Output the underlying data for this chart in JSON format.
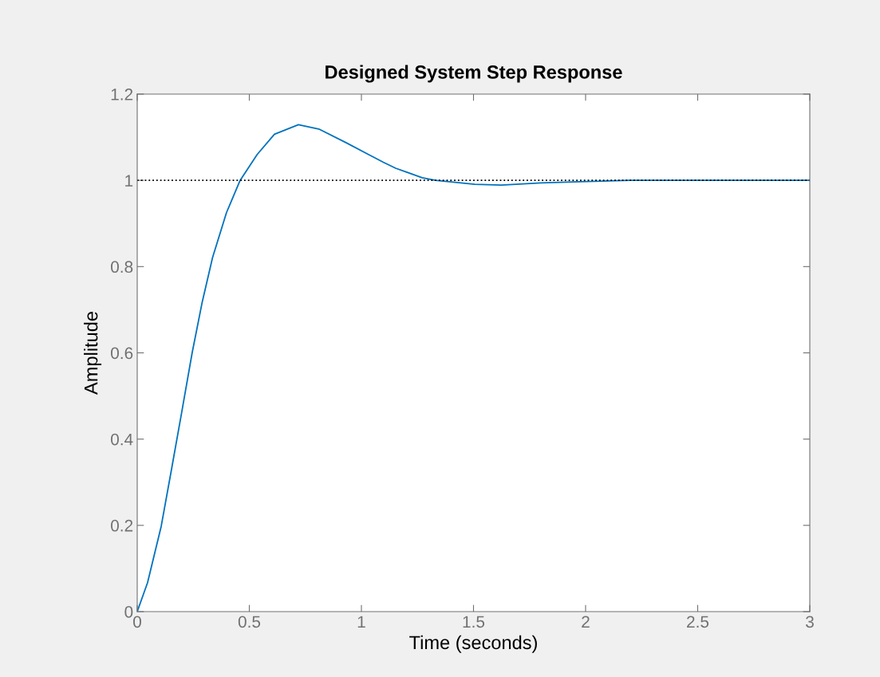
{
  "chart_data": {
    "type": "line",
    "title": "Designed System Step Response",
    "xlabel": "Time (seconds)",
    "ylabel": "Amplitude",
    "series": [
      {
        "color": "#0072bd",
        "x": [
          0,
          0.046,
          0.107,
          0.153,
          0.199,
          0.245,
          0.29,
          0.336,
          0.398,
          0.459,
          0.535,
          0.612,
          0.719,
          0.81,
          0.933,
          1.035,
          1.098,
          1.153,
          1.271,
          1.33,
          1.506,
          1.624,
          1.8,
          1.976,
          2.2,
          2.5,
          3
        ],
        "values": [
          0,
          0.067,
          0.198,
          0.33,
          0.464,
          0.6,
          0.718,
          0.821,
          0.925,
          1.0,
          1.06,
          1.107,
          1.129,
          1.119,
          1.087,
          1.059,
          1.042,
          1.028,
          1.006,
          1.0,
          0.991,
          0.989,
          0.994,
          0.997,
          1.0,
          1.0,
          1.0
        ]
      }
    ],
    "ref_lines": [
      {
        "axis": "y",
        "value": 1,
        "color": "#000000",
        "line_style": "dotted"
      }
    ],
    "xlim": [
      0,
      3
    ],
    "xticks": [
      0,
      0.5,
      1,
      1.5,
      2,
      2.5,
      3
    ],
    "ylim": [
      0,
      1.2
    ],
    "yticks": [
      0,
      0.2,
      0.4,
      0.6,
      0.8,
      1,
      1.2
    ],
    "grid": false,
    "legend": false,
    "marker": "none",
    "line_style": "solid"
  }
}
